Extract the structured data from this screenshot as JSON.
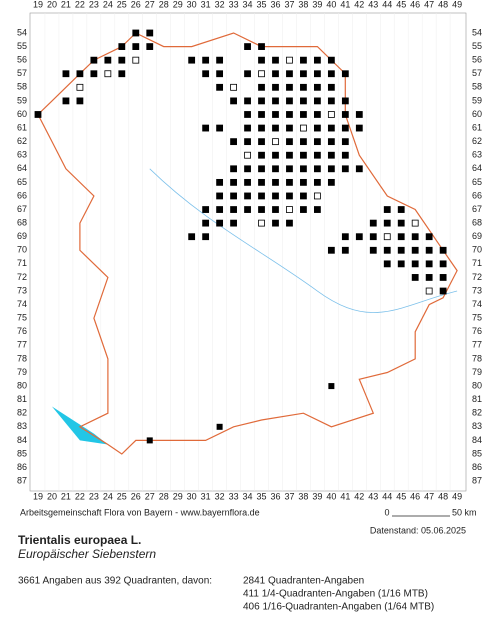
{
  "axis": {
    "columns": [
      19,
      20,
      21,
      22,
      23,
      24,
      25,
      26,
      27,
      28,
      29,
      30,
      31,
      32,
      33,
      34,
      35,
      36,
      37,
      38,
      39,
      40,
      41,
      42,
      43,
      44,
      45,
      46,
      47,
      48,
      49
    ],
    "rows": [
      54,
      55,
      56,
      57,
      58,
      59,
      60,
      61,
      62,
      63,
      64,
      65,
      66,
      67,
      68,
      69,
      70,
      71,
      72,
      73,
      74,
      75,
      76,
      77,
      78,
      79,
      80,
      81,
      82,
      83,
      84,
      85,
      86,
      87
    ]
  },
  "credit": "Arbeitsgemeinschaft Flora von Bayern - www.bayernflora.de",
  "scale": {
    "start": "0",
    "end": "50 km"
  },
  "date": "Datenstand: 05.06.2025",
  "title": "Trientalis europaea L.",
  "subtitle": "Europäischer Siebenstern",
  "summary": "3661 Angaben aus 392 Quadranten, davon:",
  "breakdown": [
    "2841 Quadranten-Angaben",
    "411 1/4-Quadranten-Angaben (1/16 MTB)",
    "406 1/16-Quadranten-Angaben (1/64 MTB)"
  ]
}
